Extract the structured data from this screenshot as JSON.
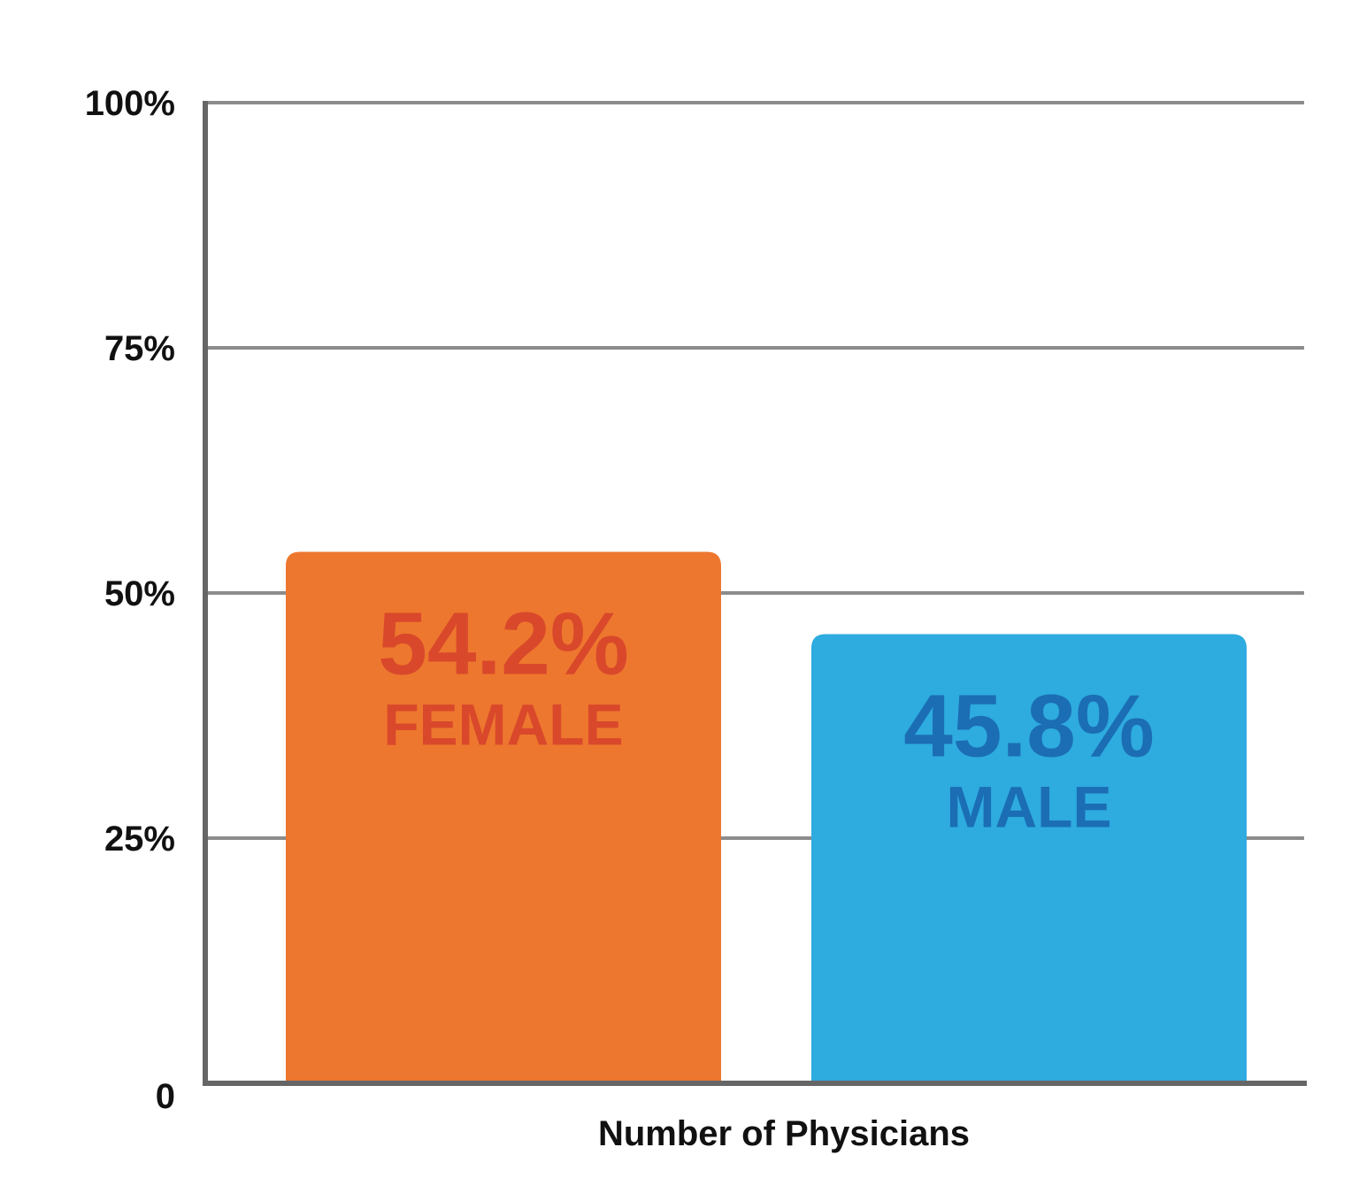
{
  "chart_data": {
    "type": "bar",
    "xlabel": "Number of Physicians",
    "ylabel": "",
    "ylim": [
      0,
      100
    ],
    "yticks": [
      {
        "value": 0,
        "label": "0"
      },
      {
        "value": 25,
        "label": "25%"
      },
      {
        "value": 50,
        "label": "50%"
      },
      {
        "value": 75,
        "label": "75%"
      },
      {
        "value": 100,
        "label": "100%"
      }
    ],
    "grid": true,
    "bars": [
      {
        "category": "FEMALE",
        "value": 54.2,
        "value_label": "54.2%",
        "color": "#ed772e",
        "text_color": "#d9482b"
      },
      {
        "category": "MALE",
        "value": 45.8,
        "value_label": "45.8%",
        "color": "#2eabdf",
        "text_color": "#1b6db4"
      }
    ],
    "colors": {
      "axis": "#666666",
      "grid": "#8c8c8c",
      "tick_text": "#111111"
    }
  }
}
